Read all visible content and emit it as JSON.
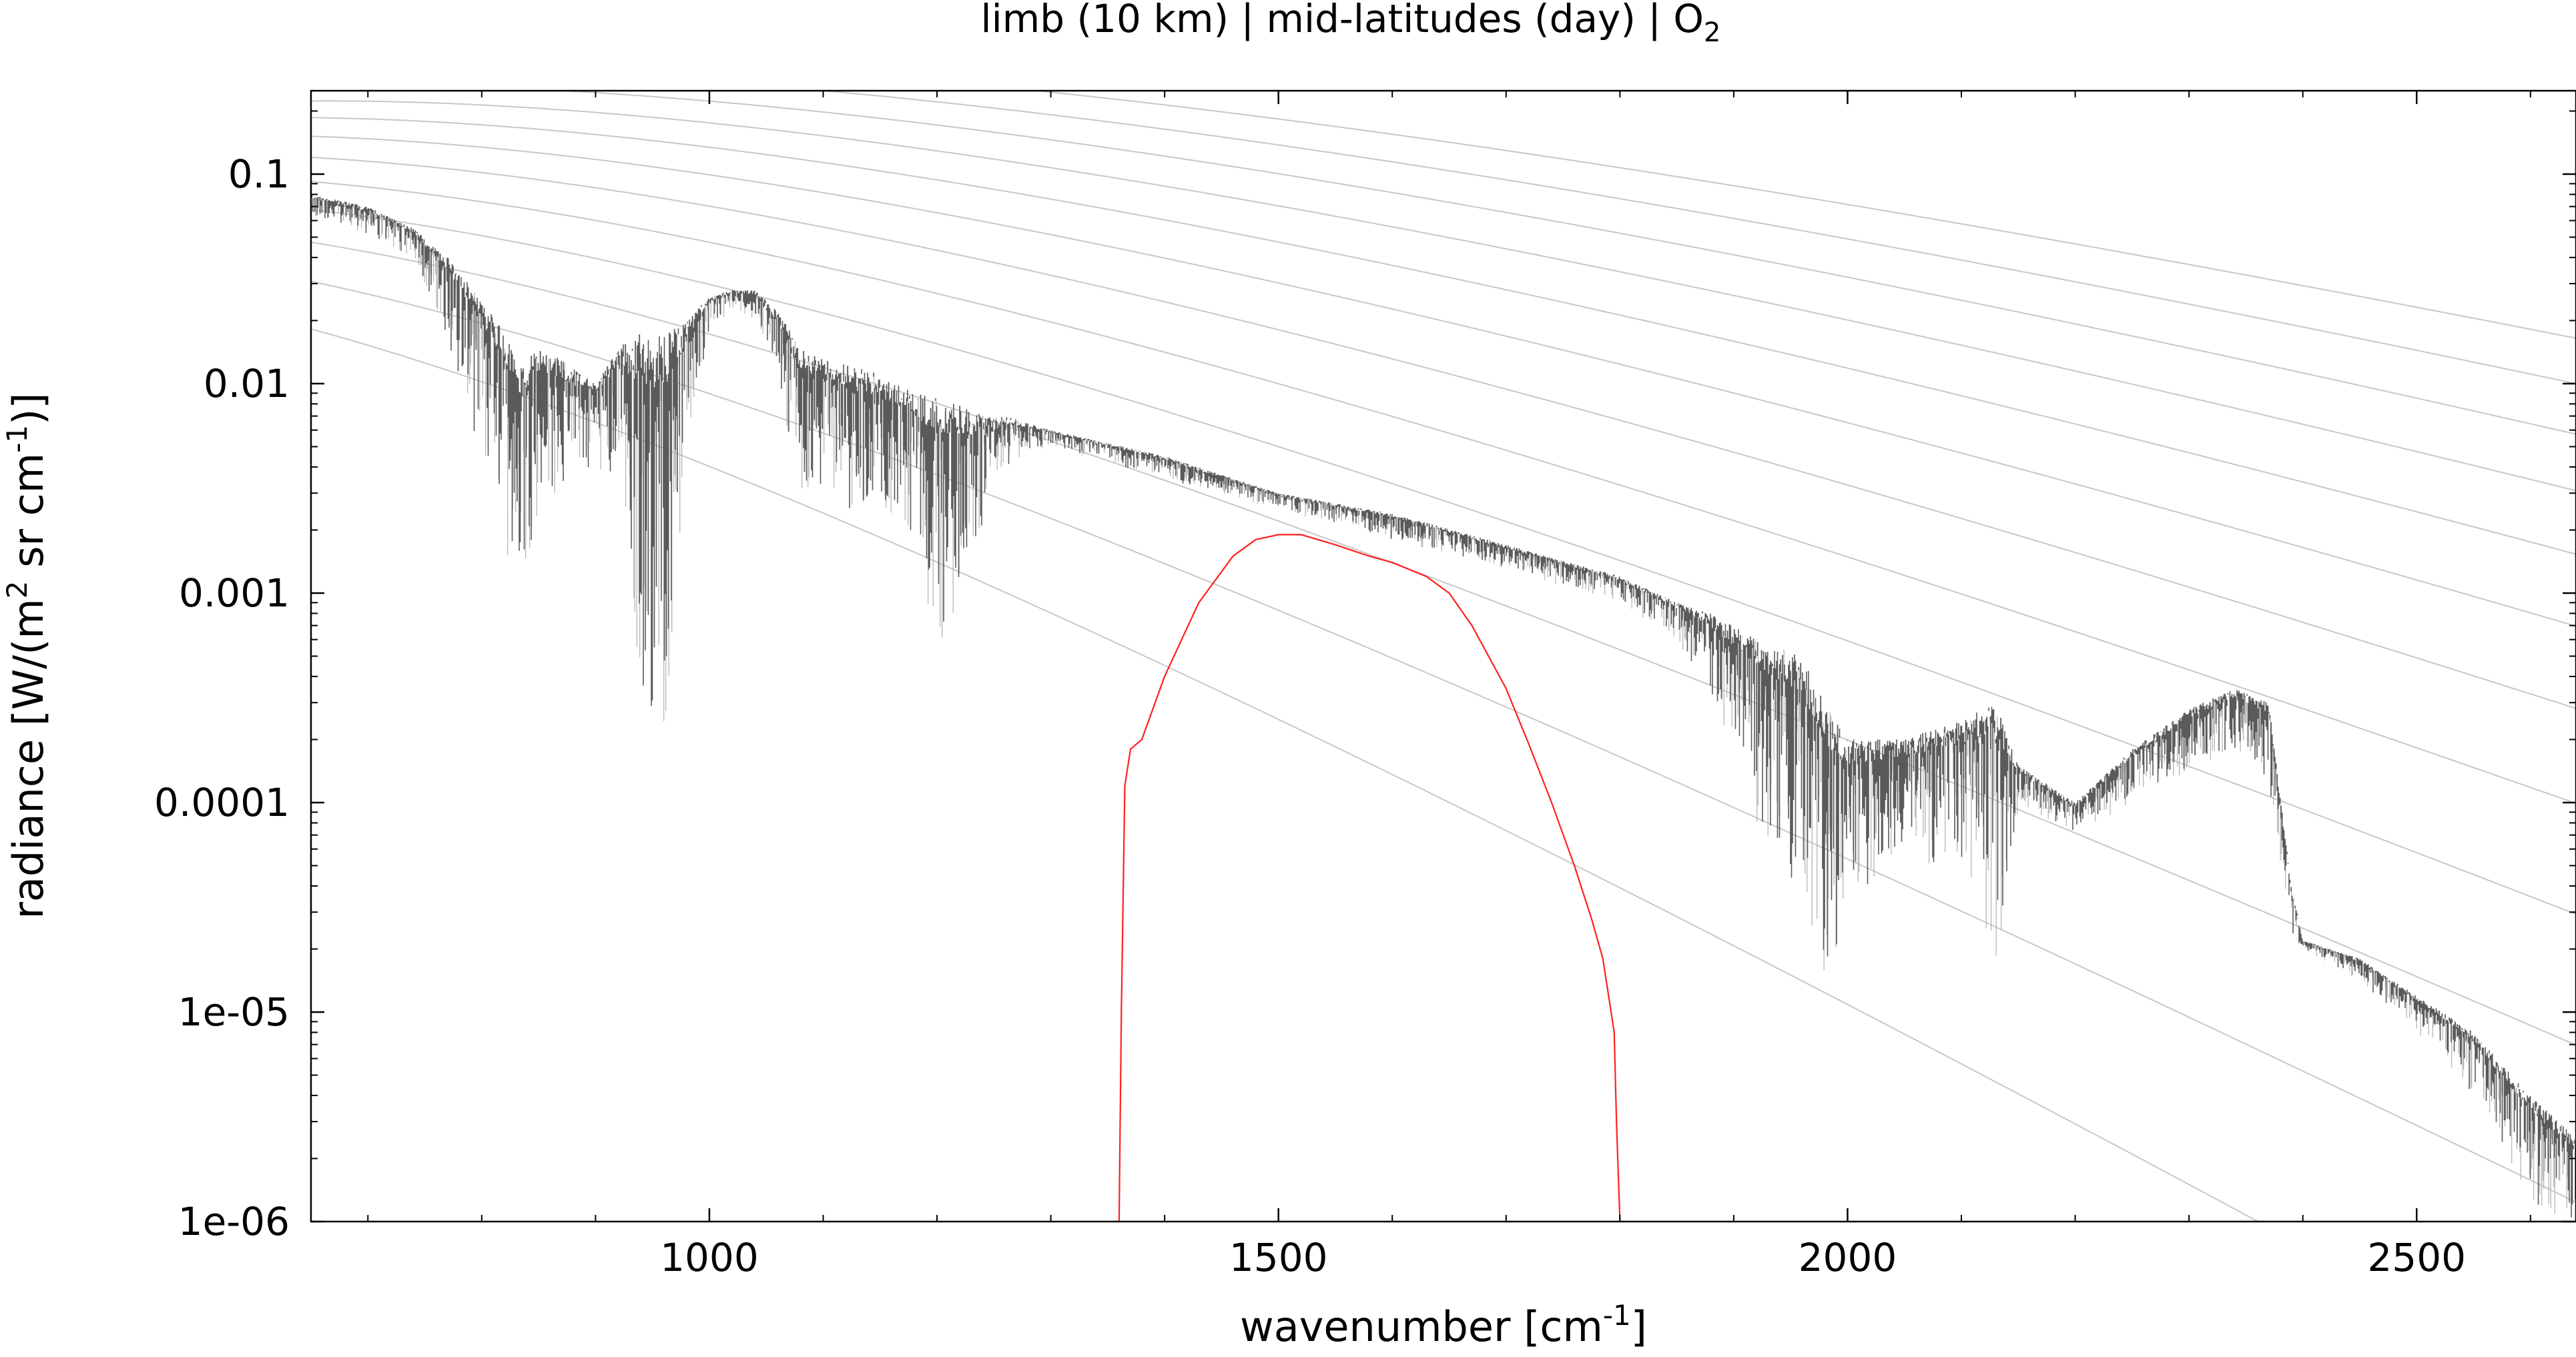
{
  "chart_data": {
    "type": "line",
    "title_parts": {
      "main": "limb (10 km) | mid-latitudes (day) | O",
      "subscript": "2"
    },
    "xlabel_parts": {
      "main": "wavenumber [cm",
      "superscript": "-1",
      "end": "]"
    },
    "ylabel_parts": {
      "a": "radiance [W/(m",
      "b": "2",
      "c": " sr cm",
      "d": "-1",
      "e": ")]"
    },
    "xlim": [
      650,
      2640
    ],
    "ylim": [
      1e-06,
      0.25
    ],
    "y_scale": "log",
    "grid": false,
    "x_ticks": [
      {
        "value": 1000,
        "label": "1000"
      },
      {
        "value": 1500,
        "label": "1500"
      },
      {
        "value": 2000,
        "label": "2000"
      },
      {
        "value": 2500,
        "label": "2500"
      }
    ],
    "y_ticks": [
      {
        "value": 0.1,
        "label": "0.1"
      },
      {
        "value": 0.01,
        "label": "0.01"
      },
      {
        "value": 0.001,
        "label": "0.001"
      },
      {
        "value": 0.0001,
        "label": "0.0001"
      },
      {
        "value": 1e-05,
        "label": "1e-05"
      },
      {
        "value": 1e-06,
        "label": "1e-06"
      }
    ],
    "planck_temperatures_K": [
      180,
      200,
      220,
      240,
      260,
      280,
      300,
      320,
      340,
      360,
      380,
      400
    ],
    "spectrum_envelope": {
      "x": [
        650,
        700,
        740,
        770,
        800,
        820,
        835,
        850,
        870,
        900,
        920,
        940,
        960,
        980,
        1000,
        1020,
        1040,
        1060,
        1080,
        1100,
        1130,
        1150,
        1180,
        1200,
        1220,
        1240,
        1260,
        1300,
        1400,
        1500,
        1600,
        1700,
        1800,
        1850,
        1880,
        1920,
        1960,
        1980,
        2000,
        2050,
        2100,
        2130,
        2150,
        2200,
        2250,
        2300,
        2340,
        2370,
        2390,
        2400,
        2450,
        2500,
        2550,
        2600,
        2640
      ],
      "upper": [
        0.08,
        0.07,
        0.055,
        0.04,
        0.025,
        0.018,
        0.012,
        0.015,
        0.013,
        0.01,
        0.015,
        0.018,
        0.017,
        0.02,
        0.026,
        0.028,
        0.028,
        0.022,
        0.015,
        0.013,
        0.012,
        0.011,
        0.009,
        0.0085,
        0.008,
        0.007,
        0.007,
        0.006,
        0.0045,
        0.003,
        0.0024,
        0.0017,
        0.0012,
        0.0009,
        0.0008,
        0.0006,
        0.0005,
        0.0003,
        0.0002,
        0.0002,
        0.00025,
        0.0003,
        0.00015,
        0.0001,
        0.00018,
        0.00028,
        0.00035,
        0.0003,
        4e-05,
        2.2e-05,
        1.8e-05,
        1.2e-05,
        8e-06,
        4e-06,
        2.5e-06
      ],
      "lower": [
        0.06,
        0.05,
        0.04,
        0.015,
        0.004,
        0.0016,
        0.0011,
        0.0025,
        0.003,
        0.004,
        0.0035,
        0.0003,
        0.0002,
        0.005,
        0.018,
        0.022,
        0.02,
        0.01,
        0.003,
        0.003,
        0.002,
        0.0018,
        0.002,
        0.0005,
        0.0009,
        0.0015,
        0.004,
        0.005,
        0.0035,
        0.0025,
        0.0018,
        0.0013,
        0.0009,
        0.0006,
        0.0003,
        8e-05,
        3e-05,
        1.2e-05,
        3e-05,
        6e-05,
        4e-05,
        1.5e-05,
        0.0001,
        7e-05,
        0.0001,
        0.00014,
        0.00018,
        0.00012,
        2.2e-05,
        2e-05,
        1.4e-05,
        8e-06,
        4e-06,
        1.2e-06,
        1e-06
      ]
    },
    "filter_curve": {
      "x": [
        1360,
        1362,
        1365,
        1370,
        1380,
        1400,
        1430,
        1460,
        1480,
        1500,
        1520,
        1550,
        1580,
        1600,
        1630,
        1650,
        1670,
        1700,
        1720,
        1740,
        1760,
        1775,
        1785,
        1790,
        1795,
        1797,
        1800
      ],
      "y": [
        1e-06,
        1e-05,
        0.00012,
        0.00018,
        0.0002,
        0.0004,
        0.0009,
        0.0015,
        0.0018,
        0.0019,
        0.0019,
        0.0017,
        0.0015,
        0.0014,
        0.0012,
        0.001,
        0.0007,
        0.00035,
        0.00019,
        0.0001,
        5e-05,
        2.8e-05,
        1.8e-05,
        1.2e-05,
        8e-06,
        3e-06,
        1e-06
      ]
    },
    "colors": {
      "spectrum": "#5a5a5a",
      "spectrum_light": "#b0b0b0",
      "filter": "#ff2020",
      "planck": "#c8c8c8",
      "axes": "#000000"
    }
  }
}
